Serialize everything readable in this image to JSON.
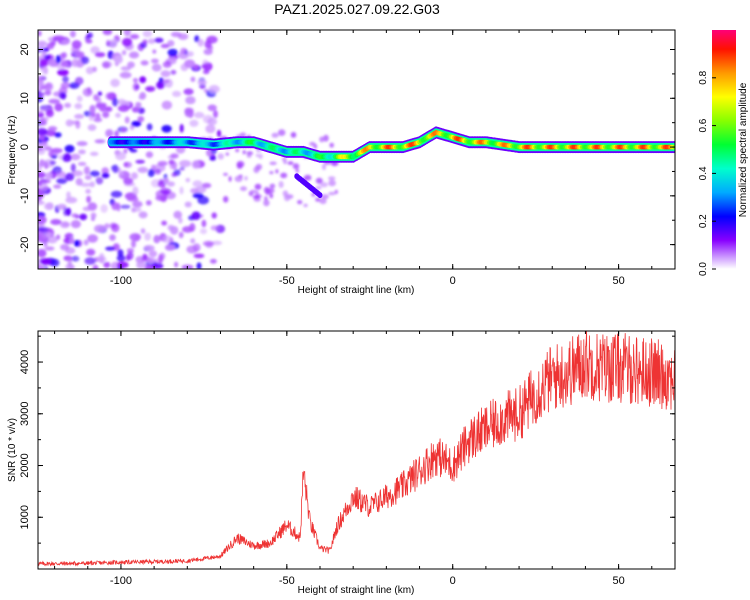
{
  "title": "PAZ1.2025.027.09.22.G03",
  "chart_data": [
    {
      "type": "heatmap",
      "xlabel": "Height of straight line (km)",
      "ylabel": "Frequency (Hz)",
      "xlim": [
        -125,
        67
      ],
      "ylim": [
        -25,
        24
      ],
      "xticks": [
        -100,
        -50,
        0,
        50
      ],
      "yticks": [
        -20,
        -10,
        0,
        10,
        20
      ],
      "colorbar": {
        "label": "Normalized spectral amplitude",
        "range": [
          0,
          1
        ],
        "ticks": [
          "0.0",
          "0.2",
          "0.4",
          "0.6",
          "0.8"
        ],
        "colors": [
          "#ffffff",
          "#cc99ff",
          "#8800ff",
          "#0000ff",
          "#00ccff",
          "#00ff66",
          "#66ff00",
          "#ffff00",
          "#ff9900",
          "#ff0000",
          "#ff0066"
        ]
      },
      "ridge": {
        "x": [
          -103,
          -95,
          -88,
          -80,
          -72,
          -65,
          -60,
          -55,
          -50,
          -45,
          -40,
          -35,
          -30,
          -25,
          -20,
          -15,
          -10,
          -5,
          0,
          5,
          10,
          15,
          20,
          25,
          30,
          40,
          50,
          60,
          67
        ],
        "freq": [
          1,
          1,
          1,
          1,
          0.5,
          1,
          1,
          0,
          -1,
          -1,
          -2,
          -2,
          -2,
          0,
          0,
          0,
          1,
          3,
          2,
          1,
          1,
          0.5,
          0,
          0,
          0,
          0,
          0,
          0,
          0
        ],
        "amplitude": [
          0.3,
          0.3,
          0.35,
          0.4,
          0.4,
          0.5,
          0.55,
          0.5,
          0.5,
          0.5,
          0.55,
          0.7,
          0.8,
          0.85,
          0.9,
          0.9,
          0.9,
          0.85,
          0.9,
          0.9,
          0.85,
          0.85,
          0.9,
          0.9,
          0.9,
          0.9,
          0.9,
          0.9,
          0.9
        ]
      }
    },
    {
      "type": "line",
      "xlabel": "Height of straight line (km)",
      "ylabel": "SNR (10 * v/v)",
      "xlim": [
        -125,
        67
      ],
      "ylim": [
        0,
        4600
      ],
      "xticks": [
        -100,
        -50,
        0,
        50
      ],
      "yticks": [
        1000,
        2000,
        3000,
        4000
      ],
      "series": [
        {
          "color": "#ee3333",
          "x": [
            -125,
            -110,
            -100,
            -90,
            -80,
            -75,
            -70,
            -65,
            -60,
            -55,
            -50,
            -46,
            -45,
            -43,
            -40,
            -37,
            -35,
            -30,
            -25,
            -20,
            -15,
            -10,
            -5,
            0,
            5,
            10,
            15,
            20,
            25,
            30,
            35,
            40,
            45,
            50,
            55,
            60,
            67
          ],
          "y": [
            100,
            110,
            130,
            140,
            160,
            200,
            250,
            600,
            450,
            500,
            850,
            600,
            1900,
            900,
            400,
            350,
            800,
            1400,
            1200,
            1400,
            1600,
            1900,
            2200,
            2000,
            2500,
            2700,
            2900,
            3000,
            3400,
            3700,
            3800,
            4000,
            3900,
            3900,
            3850,
            3800,
            3700
          ]
        }
      ]
    }
  ]
}
